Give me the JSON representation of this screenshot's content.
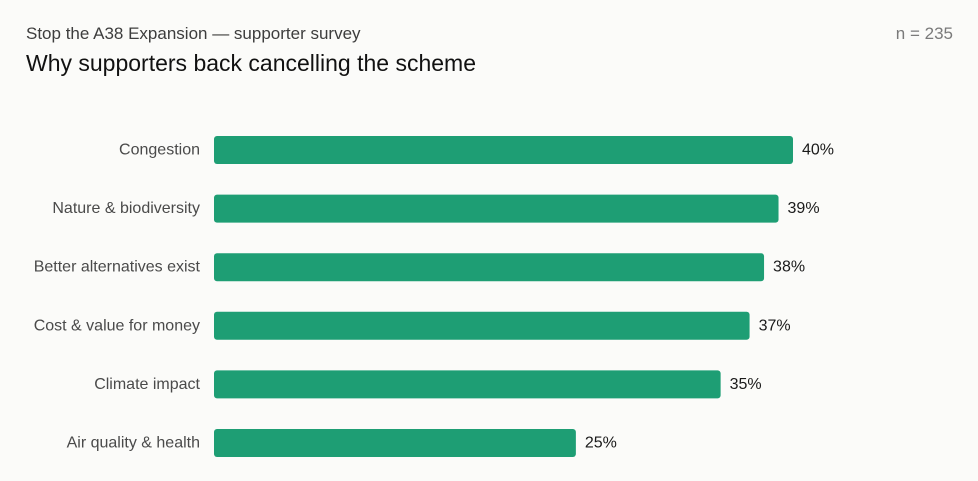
{
  "header": {
    "subtitle": "Stop the A38 Expansion — supporter survey",
    "title": "Why supporters back cancelling the scheme",
    "sample_size": "n = 235"
  },
  "colors": {
    "bar": "#1e9e74",
    "background": "#fbfbf9"
  },
  "chart_data": {
    "type": "bar",
    "orientation": "horizontal",
    "categories": [
      "Congestion",
      "Nature & biodiversity",
      "Better alternatives exist",
      "Cost & value for money",
      "Climate impact",
      "Air quality & health"
    ],
    "values": [
      40,
      39,
      38,
      37,
      35,
      25
    ],
    "value_labels": [
      "40%",
      "39%",
      "38%",
      "37%",
      "35%",
      "25%"
    ],
    "title": "Why supporters back cancelling the scheme",
    "xlabel": "",
    "ylabel": "",
    "xlim": [
      0,
      40
    ],
    "grid": false,
    "legend": "none"
  }
}
